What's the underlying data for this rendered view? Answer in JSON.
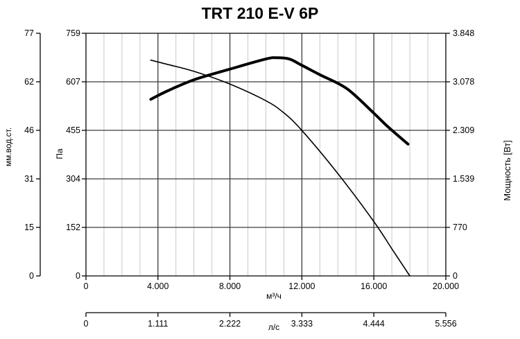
{
  "chart_data": {
    "type": "line",
    "title": "TRT 210 E-V 6P",
    "xlabel": "м³/ч",
    "ylabel": "Па",
    "ylim": [
      0,
      759
    ],
    "xlim": [
      0,
      20000
    ],
    "x_ticks": [
      "0",
      "4.000",
      "8.000",
      "12.000",
      "16.000",
      "20.000"
    ],
    "y_ticks": [
      "0",
      "152",
      "304",
      "455",
      "607",
      "759"
    ],
    "secondary_x_axis": {
      "label": "л/с",
      "ticks": [
        "0",
        "1.111",
        "2.222",
        "3.333",
        "4.444",
        "5.556"
      ]
    },
    "left_y_axis_2": {
      "label": "мм.вод.ст.",
      "ticks": [
        "0",
        "15",
        "31",
        "46",
        "62",
        "77"
      ]
    },
    "right_y_axis": {
      "label": "Мощность [Вт]",
      "ticks": [
        "0",
        "770",
        "1.539",
        "2.309",
        "3.078",
        "3.848"
      ]
    },
    "grid": true,
    "series": [
      {
        "values_axis": "Па",
        "color": "#000000",
        "weight": "thin",
        "x": [
          3600,
          4500,
          6000,
          8000,
          10000,
          11000,
          12000,
          14000,
          16000,
          17000,
          18000
        ],
        "y": [
          675,
          662,
          640,
          600,
          548,
          510,
          455,
          320,
          170,
          85,
          0
        ]
      },
      {
        "values_axis": "Мощность [Вт]",
        "color": "#000000",
        "weight": "thick",
        "x": [
          3600,
          4500,
          6000,
          8000,
          10000,
          10600,
          11300,
          12000,
          13000,
          14500,
          16000,
          16800,
          17900
        ],
        "y": [
          2800,
          2930,
          3110,
          3280,
          3440,
          3460,
          3440,
          3340,
          3190,
          2970,
          2580,
          2360,
          2090
        ]
      }
    ]
  }
}
